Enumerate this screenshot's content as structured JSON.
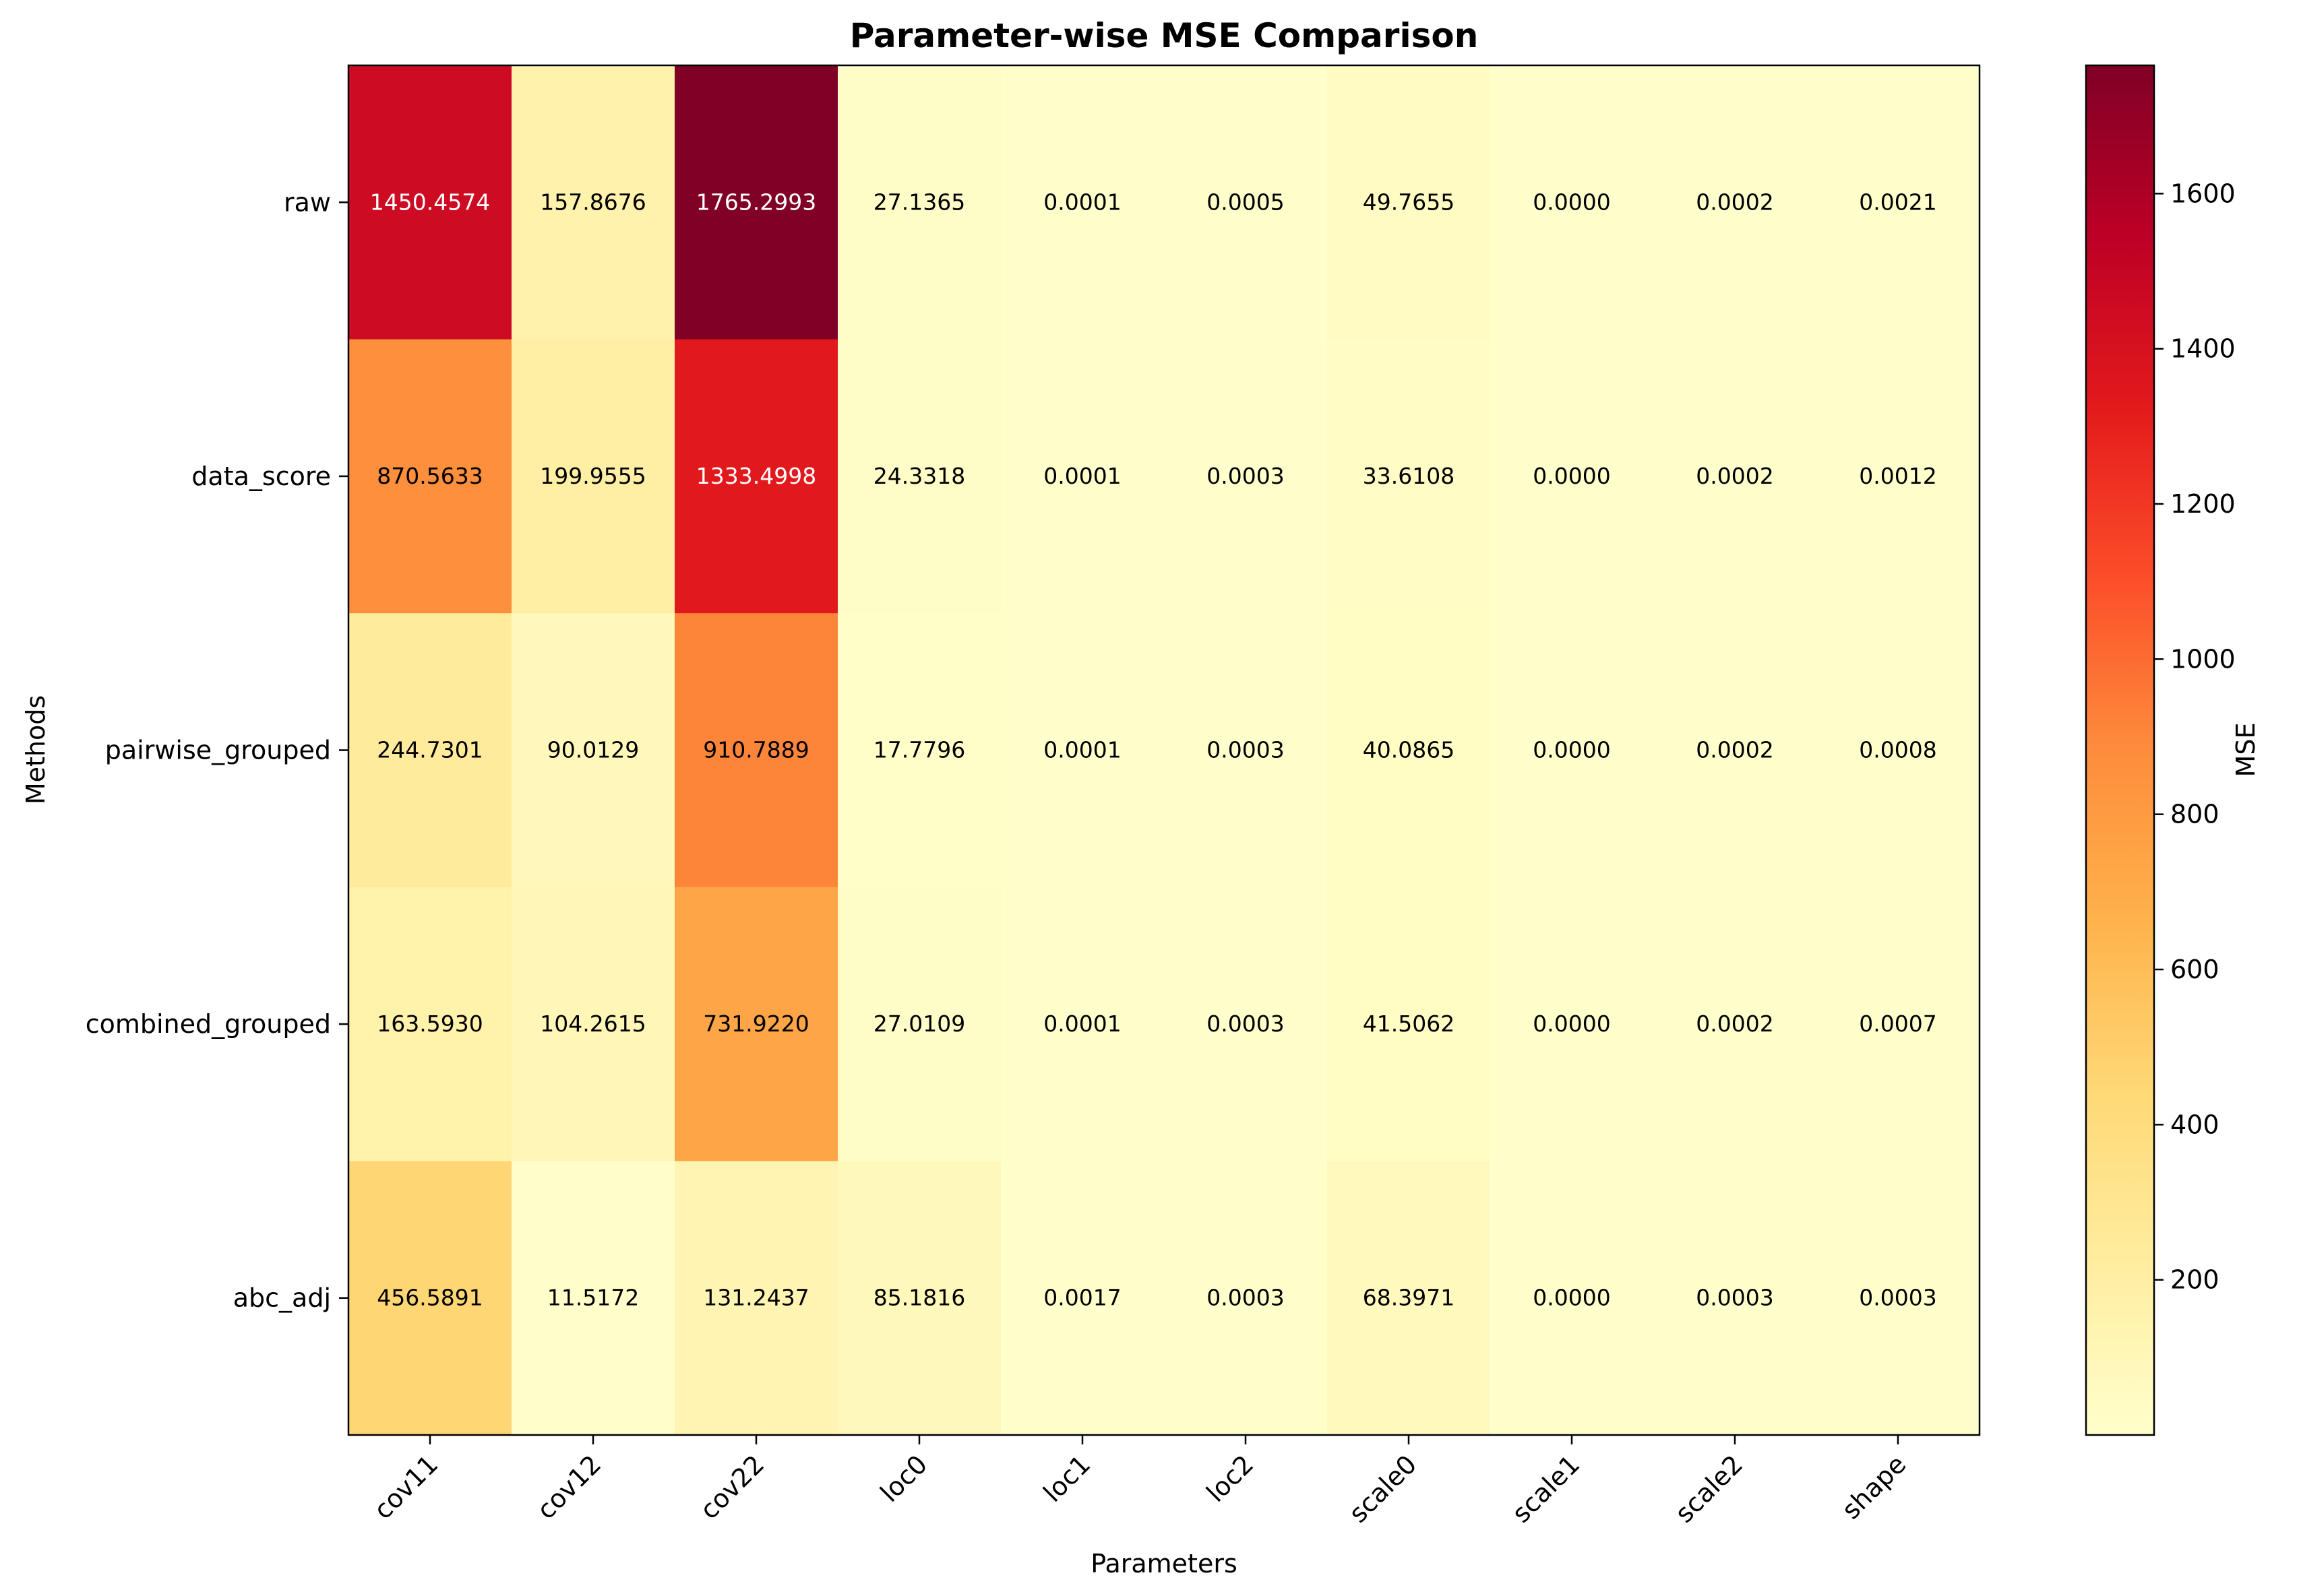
{
  "chart_data": {
    "type": "heatmap",
    "title": "Parameter-wise MSE Comparison",
    "xlabel": "Parameters",
    "ylabel": "Methods",
    "x_categories": [
      "cov11",
      "cov12",
      "cov22",
      "loc0",
      "loc1",
      "loc2",
      "scale0",
      "scale1",
      "scale2",
      "shape"
    ],
    "y_categories": [
      "raw",
      "data_score",
      "pairwise_grouped",
      "combined_grouped",
      "abc_adj"
    ],
    "values": [
      [
        1450.4574,
        157.8676,
        1765.2993,
        27.1365,
        0.0001,
        0.0005,
        49.7655,
        0.0,
        0.0002,
        0.0021
      ],
      [
        870.5633,
        199.9555,
        1333.4998,
        24.3318,
        0.0001,
        0.0003,
        33.6108,
        0.0,
        0.0002,
        0.0012
      ],
      [
        244.7301,
        90.0129,
        910.7889,
        17.7796,
        0.0001,
        0.0003,
        40.0865,
        0.0,
        0.0002,
        0.0008
      ],
      [
        163.593,
        104.2615,
        731.922,
        27.0109,
        0.0001,
        0.0003,
        41.5062,
        0.0,
        0.0002,
        0.0007
      ],
      [
        456.5891,
        11.5172,
        131.2437,
        85.1816,
        0.0017,
        0.0003,
        68.3971,
        0.0,
        0.0003,
        0.0003
      ]
    ],
    "value_format_decimals": 4,
    "colormap": "YlOrRd",
    "colorbar": {
      "label": "MSE",
      "range": [
        0,
        1765.2993
      ],
      "ticks": [
        200,
        400,
        600,
        800,
        1000,
        1200,
        1400,
        1600
      ]
    },
    "x_tick_rotation_deg": 45,
    "grid": false
  }
}
